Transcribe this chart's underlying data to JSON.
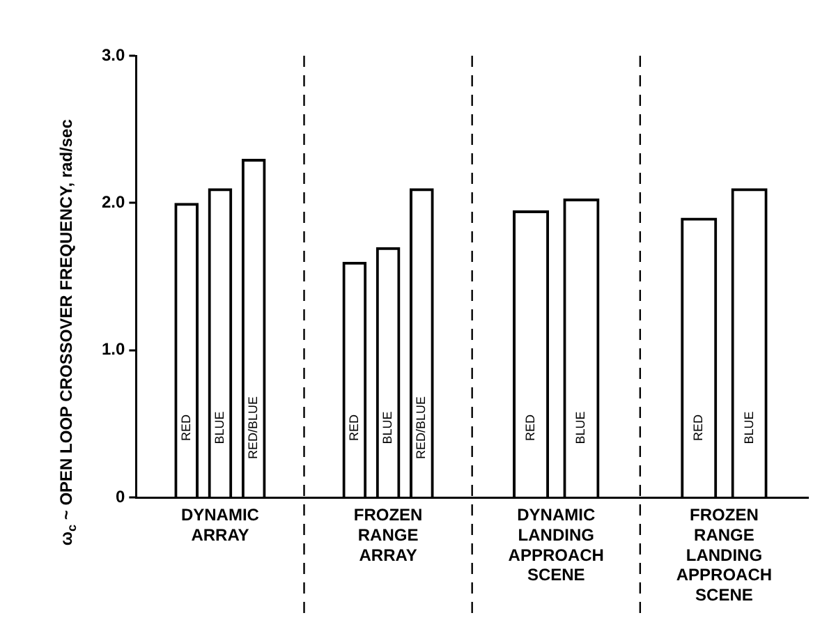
{
  "chart_data": {
    "type": "bar",
    "ylabel": "ω$_{c}$ ~ OPEN LOOP CROSSOVER FREQUENCY, rad/sec",
    "categories": [
      "DYNAMIC\nARRAY",
      "FROZEN\nRANGE\nARRAY",
      "DYNAMIC\nLANDING\nAPPROACH\nSCENE",
      "FROZEN\nRANGE\nLANDING\nAPPROACH\nSCENE"
    ],
    "series": [
      {
        "name": "RED",
        "color": "#000000",
        "values": [
          2.0,
          1.6,
          1.95,
          1.9
        ]
      },
      {
        "name": "BLUE",
        "color": "#000000",
        "values": [
          2.1,
          1.7,
          2.03,
          2.1
        ]
      },
      {
        "name": "RED/BLUE",
        "color": "#000000",
        "values": [
          2.3,
          2.1,
          null,
          null
        ]
      }
    ],
    "ylim": [
      0,
      3.0
    ],
    "yticks": [
      0,
      {
        "value": 1,
        "label": "1.0"
      },
      {
        "value": 2,
        "label": "2.0"
      },
      {
        "value": 3,
        "label": "3.0"
      }
    ],
    "grid": false,
    "legend": false
  }
}
